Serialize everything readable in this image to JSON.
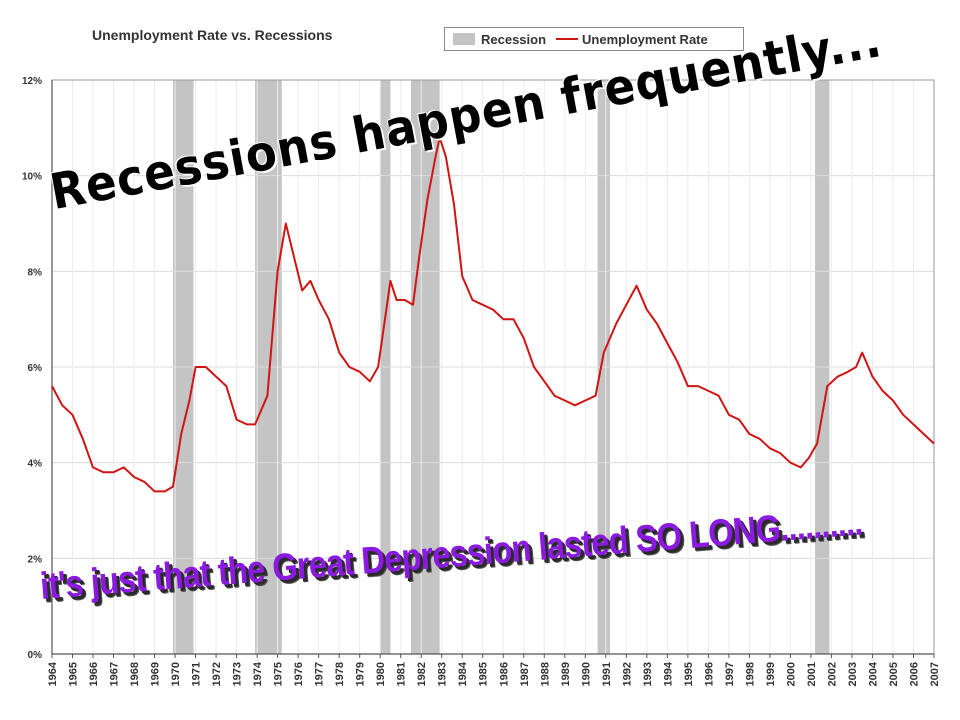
{
  "chart_data": {
    "type": "line",
    "title": "Unemployment Rate vs. Recessions",
    "legend": {
      "placement": "top-right",
      "entries": [
        {
          "label": "Recession",
          "color": "#c4c4c4",
          "kind": "area"
        },
        {
          "label": "Unemployment Rate",
          "color": "#d01414",
          "kind": "line"
        }
      ]
    },
    "x_tick_labels": [
      "1964",
      "1965",
      "1966",
      "1967",
      "1968",
      "1969",
      "1970",
      "1971",
      "1972",
      "1973",
      "1974",
      "1975",
      "1976",
      "1977",
      "1978",
      "1979",
      "1980",
      "1981",
      "1982",
      "1983",
      "1984",
      "1985",
      "1986",
      "1987",
      "1988",
      "1989",
      "1990",
      "1991",
      "1992",
      "1993",
      "1994",
      "1995",
      "1996",
      "1997",
      "1998",
      "1999",
      "2000",
      "2001",
      "2002",
      "2003",
      "2004",
      "2005",
      "2006",
      "2007"
    ],
    "xlim": [
      1964,
      2007
    ],
    "ylim": [
      0,
      12
    ],
    "y_ticks": [
      0,
      2,
      4,
      6,
      8,
      10,
      12
    ],
    "y_tick_labels": [
      "0%",
      "2%",
      "4%",
      "6%",
      "8%",
      "10%",
      "12%"
    ],
    "grid": true,
    "recessions": [
      {
        "start": 1969.9,
        "end": 1970.9
      },
      {
        "start": 1973.9,
        "end": 1975.2
      },
      {
        "start": 1980.0,
        "end": 1980.5
      },
      {
        "start": 1981.5,
        "end": 1982.9
      },
      {
        "start": 1990.6,
        "end": 1991.2
      },
      {
        "start": 2001.2,
        "end": 2001.9
      }
    ],
    "series": [
      {
        "name": "Unemployment Rate",
        "color": "#d01414",
        "points": [
          [
            1964.0,
            5.6
          ],
          [
            1964.5,
            5.2
          ],
          [
            1965.0,
            5.0
          ],
          [
            1965.5,
            4.5
          ],
          [
            1966.0,
            3.9
          ],
          [
            1966.5,
            3.8
          ],
          [
            1967.0,
            3.8
          ],
          [
            1967.5,
            3.9
          ],
          [
            1968.0,
            3.7
          ],
          [
            1968.5,
            3.6
          ],
          [
            1969.0,
            3.4
          ],
          [
            1969.5,
            3.4
          ],
          [
            1969.9,
            3.5
          ],
          [
            1970.3,
            4.6
          ],
          [
            1970.7,
            5.3
          ],
          [
            1971.0,
            6.0
          ],
          [
            1971.5,
            6.0
          ],
          [
            1972.0,
            5.8
          ],
          [
            1972.5,
            5.6
          ],
          [
            1973.0,
            4.9
          ],
          [
            1973.5,
            4.8
          ],
          [
            1973.9,
            4.8
          ],
          [
            1974.5,
            5.4
          ],
          [
            1975.0,
            8.0
          ],
          [
            1975.4,
            9.0
          ],
          [
            1975.8,
            8.3
          ],
          [
            1976.2,
            7.6
          ],
          [
            1976.6,
            7.8
          ],
          [
            1977.0,
            7.4
          ],
          [
            1977.5,
            7.0
          ],
          [
            1978.0,
            6.3
          ],
          [
            1978.5,
            6.0
          ],
          [
            1979.0,
            5.9
          ],
          [
            1979.5,
            5.7
          ],
          [
            1979.9,
            6.0
          ],
          [
            1980.2,
            6.9
          ],
          [
            1980.5,
            7.8
          ],
          [
            1980.8,
            7.4
          ],
          [
            1981.2,
            7.4
          ],
          [
            1981.6,
            7.3
          ],
          [
            1981.9,
            8.3
          ],
          [
            1982.3,
            9.5
          ],
          [
            1982.7,
            10.4
          ],
          [
            1982.9,
            10.8
          ],
          [
            1983.2,
            10.4
          ],
          [
            1983.6,
            9.4
          ],
          [
            1984.0,
            7.9
          ],
          [
            1984.5,
            7.4
          ],
          [
            1985.0,
            7.3
          ],
          [
            1985.5,
            7.2
          ],
          [
            1986.0,
            7.0
          ],
          [
            1986.5,
            7.0
          ],
          [
            1987.0,
            6.6
          ],
          [
            1987.5,
            6.0
          ],
          [
            1988.0,
            5.7
          ],
          [
            1988.5,
            5.4
          ],
          [
            1989.0,
            5.3
          ],
          [
            1989.5,
            5.2
          ],
          [
            1990.0,
            5.3
          ],
          [
            1990.5,
            5.4
          ],
          [
            1990.9,
            6.3
          ],
          [
            1991.5,
            6.9
          ],
          [
            1992.0,
            7.3
          ],
          [
            1992.5,
            7.7
          ],
          [
            1993.0,
            7.2
          ],
          [
            1993.5,
            6.9
          ],
          [
            1994.0,
            6.5
          ],
          [
            1994.5,
            6.1
          ],
          [
            1995.0,
            5.6
          ],
          [
            1995.5,
            5.6
          ],
          [
            1996.0,
            5.5
          ],
          [
            1996.5,
            5.4
          ],
          [
            1997.0,
            5.0
          ],
          [
            1997.5,
            4.9
          ],
          [
            1998.0,
            4.6
          ],
          [
            1998.5,
            4.5
          ],
          [
            1999.0,
            4.3
          ],
          [
            1999.5,
            4.2
          ],
          [
            2000.0,
            4.0
          ],
          [
            2000.5,
            3.9
          ],
          [
            2000.9,
            4.1
          ],
          [
            2001.3,
            4.4
          ],
          [
            2001.8,
            5.6
          ],
          [
            2002.3,
            5.8
          ],
          [
            2002.8,
            5.9
          ],
          [
            2003.2,
            6.0
          ],
          [
            2003.5,
            6.3
          ],
          [
            2004.0,
            5.8
          ],
          [
            2004.5,
            5.5
          ],
          [
            2005.0,
            5.3
          ],
          [
            2005.5,
            5.0
          ],
          [
            2006.0,
            4.8
          ],
          [
            2006.5,
            4.6
          ],
          [
            2007.0,
            4.4
          ]
        ]
      }
    ],
    "annotations": [
      "Recessions happen frequently...",
      "it's just that the Great Depression lasted SO LONG.........."
    ]
  }
}
